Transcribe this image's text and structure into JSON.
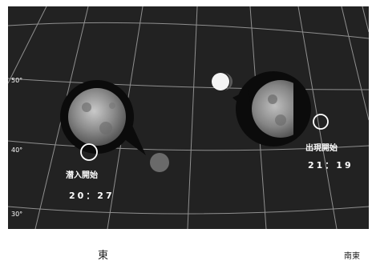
{
  "altitude_labels": [
    "50°",
    "40°",
    "30°"
  ],
  "directions": {
    "east": "東",
    "southeast": "南東"
  },
  "events": {
    "ingress": {
      "label": "潜入開始",
      "time": "20：27"
    },
    "egress": {
      "label": "出現開始",
      "time": "21：19"
    }
  },
  "colors": {
    "sky": "#222222",
    "grid": "#8f8f8f",
    "callout": "#0b0b0b",
    "moon_dark": "#6b6b6b",
    "moon_light": "#bdbdbd",
    "text": "#ffffff"
  }
}
